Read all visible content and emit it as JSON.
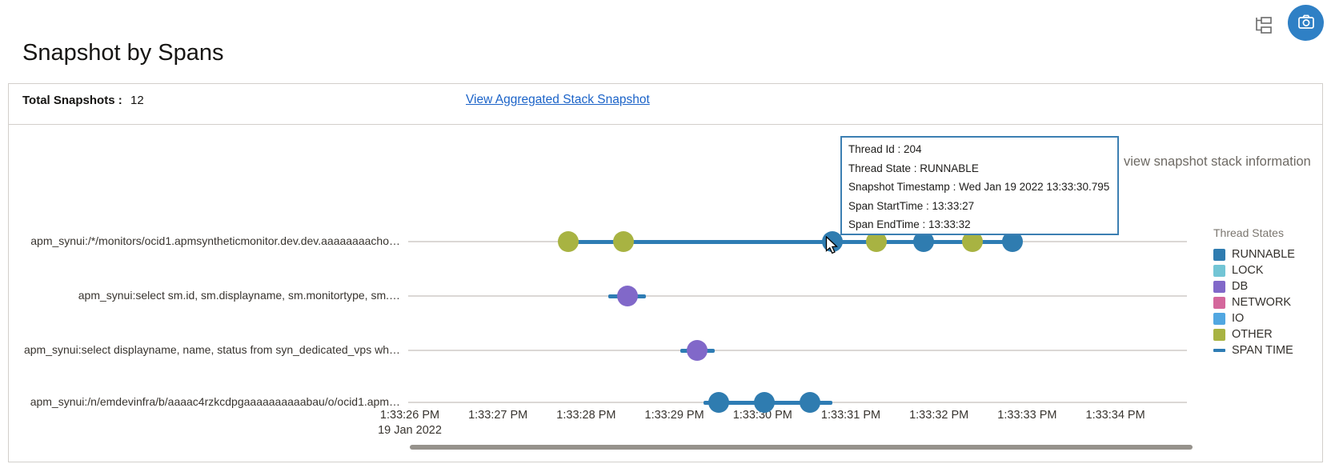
{
  "page": {
    "title": "Snapshot by Spans"
  },
  "toolbar": {
    "tree_icon": "span-tree-icon",
    "camera_icon": "camera-icon",
    "camera_button_color": "#2f80c5",
    "tree_icon_color": "#6b6b6b"
  },
  "summary": {
    "total_label": "Total Snapshots :",
    "total_value": "12",
    "link_label": "View Aggregated Stack Snapshot",
    "link_color": "#1b63c8"
  },
  "hint": "view snapshot stack information",
  "tooltip": {
    "border_color": "#3c7fb2",
    "lines": [
      "Thread Id : 204",
      "Thread State : RUNNABLE",
      "Snapshot Timestamp : Wed Jan 19 2022 13:33:30.795",
      "Span StartTime : 13:33:27",
      "Span EndTime : 13:33:32"
    ]
  },
  "chart_data": {
    "type": "scatter",
    "subtype": "span-snapshot-timeline",
    "span_color": "#2e7cb4",
    "base_line_color": "#dbd8d5",
    "x_axis": {
      "tick_labels": [
        "1:33:26 PM",
        "1:33:27 PM",
        "1:33:28 PM",
        "1:33:29 PM",
        "1:33:30 PM",
        "1:33:31 PM",
        "1:33:32 PM",
        "1:33:33 PM",
        "1:33:34 PM"
      ],
      "tick_seconds": [
        26,
        27,
        28,
        29,
        30,
        31,
        32,
        33,
        34
      ],
      "date_label": "19 Jan 2022",
      "range_seconds": [
        25.98,
        34.81
      ]
    },
    "rows": [
      {
        "label": "apm_synui:/*/monitors/ocid1.apmsyntheticmonitor.dev.dev.aaaaaaaacho…",
        "span": {
          "start": 27.78,
          "end": 32.85
        },
        "snapshots": [
          {
            "t": 27.8,
            "state": "OTHER"
          },
          {
            "t": 28.42,
            "state": "OTHER"
          },
          {
            "t": 30.795,
            "state": "RUNNABLE",
            "hovered": true
          },
          {
            "t": 31.29,
            "state": "OTHER"
          },
          {
            "t": 31.83,
            "state": "RUNNABLE"
          },
          {
            "t": 32.38,
            "state": "OTHER"
          },
          {
            "t": 32.83,
            "state": "RUNNABLE"
          }
        ]
      },
      {
        "label": "apm_synui:select sm.id, sm.displayname, sm.monitortype, sm.…",
        "span": {
          "start": 28.25,
          "end": 28.68
        },
        "snapshots": [
          {
            "t": 28.47,
            "state": "DB"
          }
        ]
      },
      {
        "label": "apm_synui:select displayname, name, status from syn_dedicated_vps wh…",
        "span": {
          "start": 29.07,
          "end": 29.46
        },
        "snapshots": [
          {
            "t": 29.26,
            "state": "DB"
          }
        ]
      },
      {
        "label": "apm_synui:/n/emdevinfra/b/aaaac4rzkcdpgaaaaaaaaaabau/o/ocid1.apm…",
        "span": {
          "start": 29.33,
          "end": 30.79
        },
        "snapshots": [
          {
            "t": 29.5,
            "state": "RUNNABLE"
          },
          {
            "t": 30.02,
            "state": "RUNNABLE"
          },
          {
            "t": 30.54,
            "state": "RUNNABLE"
          }
        ]
      }
    ],
    "legend": {
      "title": "Thread States",
      "position": "right",
      "items": [
        {
          "label": "RUNNABLE",
          "color": "#2f7cb0",
          "marker": "square"
        },
        {
          "label": "LOCK",
          "color": "#72c5d5",
          "marker": "square"
        },
        {
          "label": "DB",
          "color": "#8168c9",
          "marker": "square"
        },
        {
          "label": "NETWORK",
          "color": "#d4679c",
          "marker": "square"
        },
        {
          "label": "IO",
          "color": "#51a7e1",
          "marker": "square"
        },
        {
          "label": "OTHER",
          "color": "#a8b342",
          "marker": "square"
        },
        {
          "label": "SPAN TIME",
          "color": "#2e7cb4",
          "marker": "line"
        }
      ]
    }
  }
}
